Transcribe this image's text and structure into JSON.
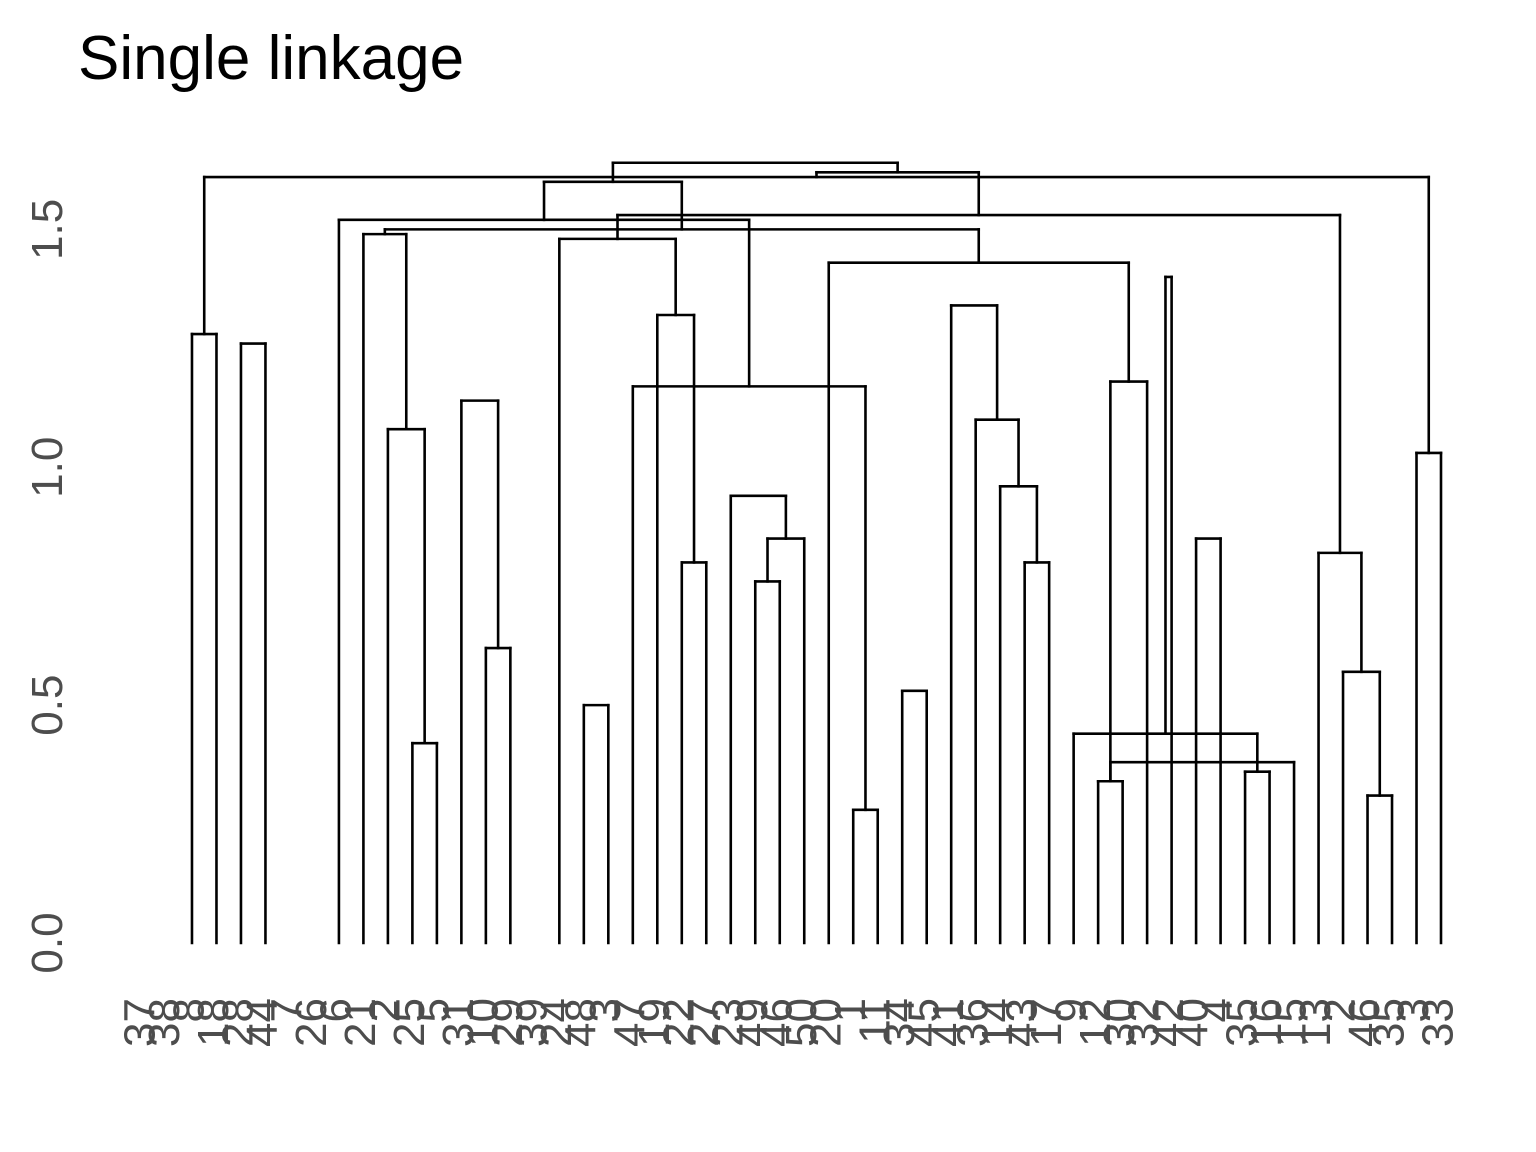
{
  "chart_data": {
    "type": "dendrogram",
    "title": "Single linkage",
    "xlabel": "",
    "ylabel": "",
    "ylim": [
      0,
      1.65
    ],
    "y_ticks": [
      {
        "value": 0.0,
        "label": "0.0"
      },
      {
        "value": 0.5,
        "label": "0.5"
      },
      {
        "value": 1.0,
        "label": "1.0"
      },
      {
        "value": 1.5,
        "label": "1.5"
      }
    ],
    "grid": false,
    "leaves": [
      "37",
      "38",
      "8",
      "18",
      "28",
      "44",
      "7",
      "26",
      "6",
      "21",
      "2",
      "25",
      "5",
      "31",
      "10",
      "29",
      "39",
      "24",
      "48",
      "3",
      "47",
      "19",
      "22",
      "27",
      "23",
      "49",
      "46",
      "50",
      "20",
      "1",
      "11",
      "34",
      "45",
      "41",
      "36",
      "14",
      "43",
      "17",
      "9",
      "12",
      "30",
      "32",
      "42",
      "40",
      "4",
      "35",
      "16",
      "15",
      "13",
      "2",
      "46",
      "35",
      "3",
      "33"
    ],
    "merges": [
      [
        -30,
        -31,
        0.28
      ],
      [
        -51,
        -52,
        0.31
      ],
      [
        -40,
        -41,
        0.34
      ],
      [
        -46,
        -47,
        0.36
      ],
      [
        -48,
        3,
        0.38
      ],
      [
        -12,
        -13,
        0.42
      ],
      [
        -39,
        4,
        0.44
      ],
      [
        -19,
        -20,
        0.5
      ],
      [
        -32,
        -33,
        0.53
      ],
      [
        -50,
        2,
        0.57
      ],
      [
        -15,
        -16,
        0.62
      ],
      [
        -26,
        -27,
        0.76
      ],
      [
        -37,
        -38,
        0.8
      ],
      [
        -23,
        -24,
        0.8
      ],
      [
        -49,
        10,
        0.82
      ],
      [
        -44,
        -45,
        0.85
      ],
      [
        12,
        -28,
        0.85
      ],
      [
        -25,
        17,
        0.94
      ],
      [
        -36,
        13,
        0.96
      ],
      [
        -53,
        -54,
        1.03
      ],
      [
        -11,
        6,
        1.08
      ],
      [
        -35,
        19,
        1.1
      ],
      [
        -14,
        11,
        1.14
      ],
      [
        -21,
        1,
        1.17
      ],
      [
        -42,
        3,
        1.18
      ],
      [
        -5,
        -6,
        1.26
      ],
      [
        -4,
        -3,
        1.28
      ],
      [
        -22,
        14,
        1.32
      ],
      [
        -34,
        22,
        1.34
      ],
      [
        -43,
        7,
        1.4
      ],
      [
        -29,
        25,
        1.43
      ],
      [
        -18,
        28,
        1.48
      ],
      [
        -10,
        21,
        1.49
      ],
      [
        31,
        33,
        1.5
      ],
      [
        -9,
        24,
        1.52
      ],
      [
        15,
        32,
        1.53
      ],
      [
        35,
        34,
        1.6
      ],
      [
        20,
        27,
        1.61
      ],
      [
        36,
        38,
        1.62
      ],
      [
        37,
        39,
        1.64
      ]
    ]
  }
}
